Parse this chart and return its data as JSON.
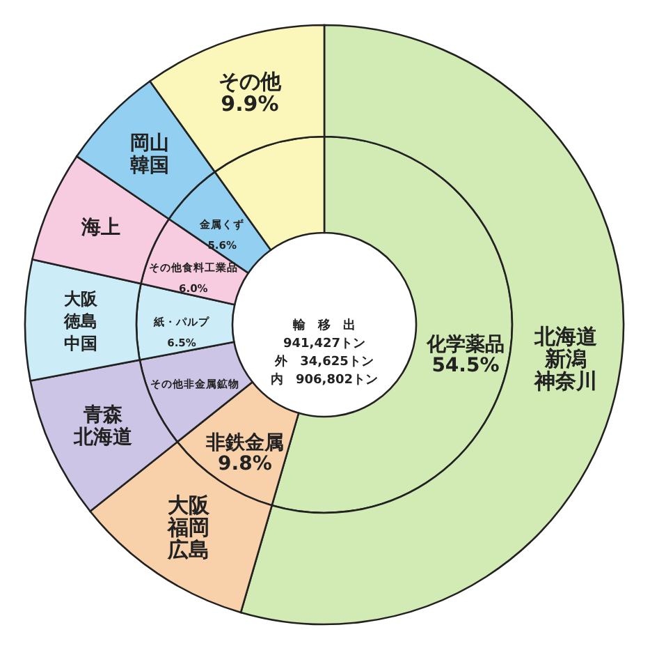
{
  "chart_data": {
    "type": "donut",
    "categories": [
      "化学薬品",
      "非鉄金属",
      "その他非金属鉱物",
      "紙・パルプ",
      "その他食料工業品",
      "金属くず",
      "その他"
    ],
    "colors": [
      "#d2eab4",
      "#f8d0aa",
      "#cdc5e6",
      "#ccecf7",
      "#f7cbe0",
      "#92cff0",
      "#fbf7bb"
    ],
    "series": [
      {
        "values": [
          54.5,
          9.8,
          7.7,
          6.5,
          6.0,
          5.6,
          9.9
        ],
        "value_labels": [
          "54.5%",
          "9.8%",
          null,
          "6.5%",
          "6.0%",
          "5.6%",
          "9.9%"
        ]
      },
      {
        "values": [
          54.5,
          9.8,
          7.7,
          6.5,
          6.0,
          5.6,
          9.9
        ]
      }
    ],
    "annotations": [
      "輸　移　出",
      "941,427トン",
      "外　34,625トン",
      "内　906,802トン",
      {
        "text": "北海道",
        "x": "化学薬品"
      },
      {
        "text": "新潟",
        "x": "化学薬品"
      },
      {
        "text": "神奈川",
        "x": "化学薬品"
      },
      {
        "text": "大阪",
        "x": "非鉄金属"
      },
      {
        "text": "福岡",
        "x": "非鉄金属"
      },
      {
        "text": "広島",
        "x": "非鉄金属"
      },
      {
        "text": "青森",
        "x": "その他非金属鉱物"
      },
      {
        "text": "北海道",
        "x": "その他非金属鉱物"
      },
      {
        "text": "大阪",
        "x": "紙・パルプ"
      },
      {
        "text": "徳島",
        "x": "紙・パルプ"
      },
      {
        "text": "中国",
        "x": "紙・パルプ"
      },
      {
        "text": "海上",
        "x": "その他食料工業品"
      },
      {
        "text": "岡山",
        "x": "金属くず"
      },
      {
        "text": "韓国",
        "x": "金属くず"
      }
    ]
  }
}
